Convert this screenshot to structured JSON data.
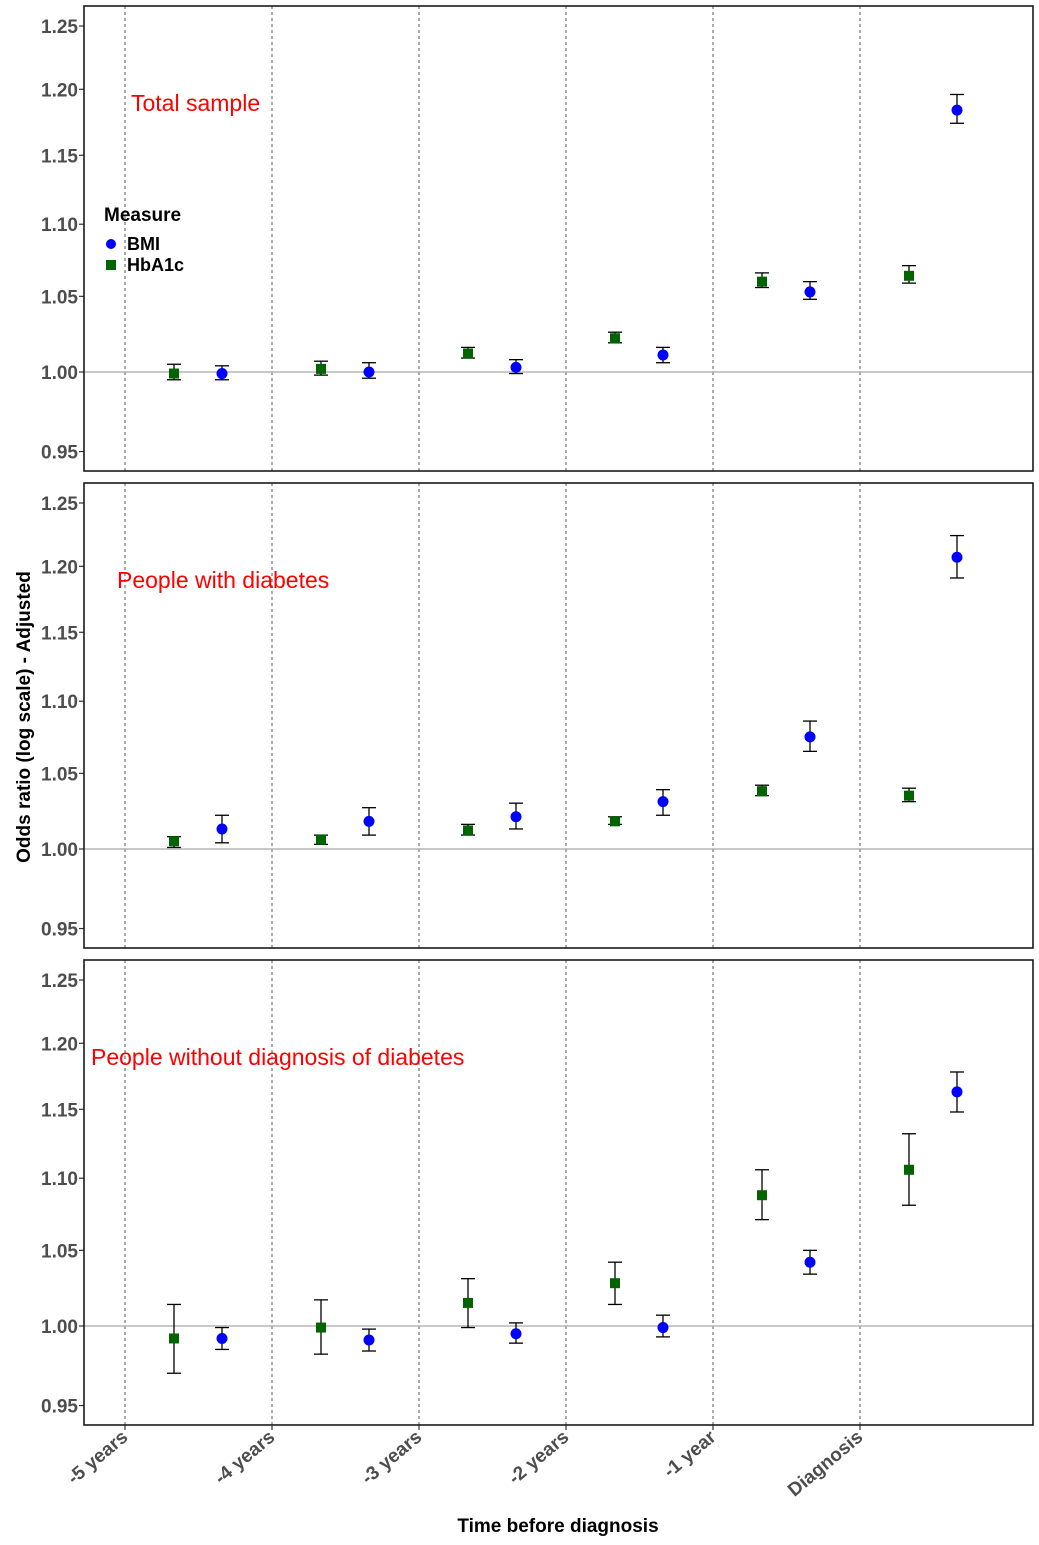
{
  "chart_data": {
    "type": "scatter",
    "y_axis_title": "Odds ratio (log scale) - Adjusted",
    "x_axis_title": "Time before diagnosis",
    "y_scale": "log",
    "ylim": [
      0.94,
      1.26
    ],
    "y_ticks": [
      "0.95",
      "1.00",
      "1.05",
      "1.10",
      "1.15",
      "1.20",
      "1.25"
    ],
    "x_ticks": [
      "-5 years",
      "-4 years",
      "-3 years",
      "-2 years",
      "-1 year",
      "Diagnosis"
    ],
    "reference_line_y": 1.0,
    "grid": "vertical dashed lines at x ticks",
    "legend": {
      "title": "Measure",
      "placement": "inside top-left of first panel",
      "entries": [
        {
          "label": "BMI",
          "shape": "circle",
          "color": "#0000ff"
        },
        {
          "label": "HbA1c",
          "shape": "square",
          "color": "#006400"
        }
      ]
    },
    "panels": [
      {
        "title": "Total sample",
        "series": [
          {
            "name": "BMI",
            "color": "#0000ff",
            "shape": "circle",
            "x": [
              "-5 years",
              "-4 years",
              "-3 years",
              "-2 years",
              "-1 year",
              "Diagnosis"
            ],
            "y": [
              0.999,
              1.0,
              1.003,
              1.011,
              1.053,
              1.184
            ],
            "low": [
              0.995,
              0.996,
              0.999,
              1.006,
              1.048,
              1.174
            ],
            "high": [
              1.004,
              1.006,
              1.008,
              1.016,
              1.06,
              1.196
            ]
          },
          {
            "name": "HbA1c",
            "color": "#006400",
            "shape": "square",
            "x": [
              "-5 years",
              "-4 years",
              "-3 years",
              "-2 years",
              "-1 year",
              "Diagnosis"
            ],
            "y": [
              0.999,
              1.002,
              1.012,
              1.022,
              1.06,
              1.064
            ],
            "low": [
              0.995,
              0.998,
              1.009,
              1.019,
              1.056,
              1.059
            ],
            "high": [
              1.005,
              1.007,
              1.016,
              1.026,
              1.066,
              1.071
            ]
          }
        ]
      },
      {
        "title": "People with diabetes",
        "series": [
          {
            "name": "BMI",
            "color": "#0000ff",
            "shape": "circle",
            "x": [
              "-5 years",
              "-4 years",
              "-3 years",
              "-2 years",
              "-1 year",
              "Diagnosis"
            ],
            "y": [
              1.013,
              1.018,
              1.021,
              1.031,
              1.075,
              1.207
            ],
            "low": [
              1.004,
              1.009,
              1.013,
              1.022,
              1.065,
              1.191
            ],
            "high": [
              1.022,
              1.027,
              1.03,
              1.039,
              1.086,
              1.224
            ]
          },
          {
            "name": "HbA1c",
            "color": "#006400",
            "shape": "square",
            "x": [
              "-5 years",
              "-4 years",
              "-3 years",
              "-2 years",
              "-1 year",
              "Diagnosis"
            ],
            "y": [
              1.005,
              1.006,
              1.012,
              1.018,
              1.038,
              1.035
            ],
            "low": [
              1.001,
              1.003,
              1.009,
              1.016,
              1.035,
              1.031
            ],
            "high": [
              1.008,
              1.009,
              1.016,
              1.021,
              1.042,
              1.04
            ]
          }
        ]
      },
      {
        "title": "People without diagnosis of diabetes",
        "series": [
          {
            "name": "BMI",
            "color": "#0000ff",
            "shape": "circle",
            "x": [
              "-5 years",
              "-4 years",
              "-3 years",
              "-2 years",
              "-1 year",
              "Diagnosis"
            ],
            "y": [
              0.992,
              0.991,
              0.995,
              0.999,
              1.042,
              1.163
            ],
            "low": [
              0.985,
              0.984,
              0.989,
              0.993,
              1.034,
              1.148
            ],
            "high": [
              0.999,
              0.998,
              1.002,
              1.007,
              1.05,
              1.178
            ]
          },
          {
            "name": "HbA1c",
            "color": "#006400",
            "shape": "square",
            "x": [
              "-5 years",
              "-4 years",
              "-3 years",
              "-2 years",
              "-1 year",
              "Diagnosis"
            ],
            "y": [
              0.992,
              0.999,
              1.015,
              1.028,
              1.088,
              1.106
            ],
            "low": [
              0.97,
              0.982,
              0.999,
              1.014,
              1.071,
              1.081
            ],
            "high": [
              1.014,
              1.017,
              1.031,
              1.042,
              1.106,
              1.132
            ]
          }
        ]
      }
    ]
  }
}
